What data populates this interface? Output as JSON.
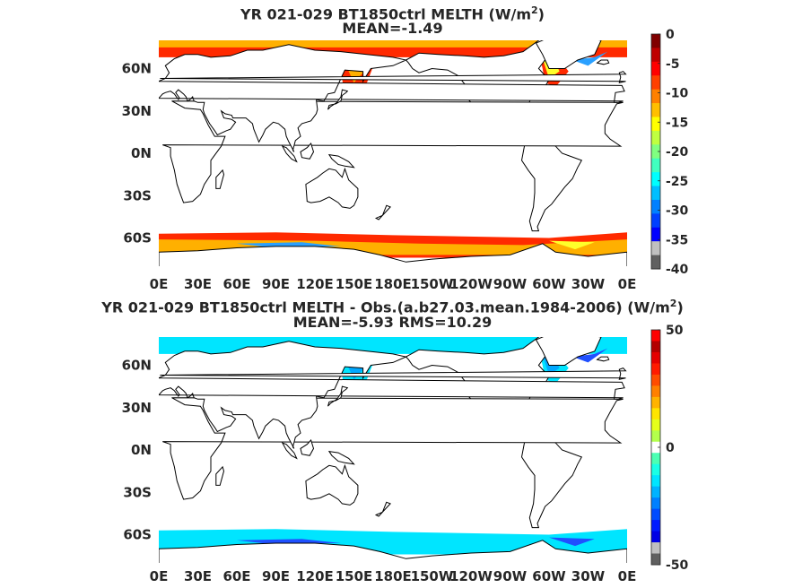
{
  "chart_data": [
    {
      "type": "heatmap",
      "title_prefix": "YR 021-029 BT1850ctrl  MELTH (W/m",
      "title_sup": "2",
      "title_suffix": ")",
      "subtitle": "MEAN=-1.49",
      "xticks": [
        "0E",
        "30E",
        "60E",
        "90E",
        "120E",
        "150E",
        "180E",
        "150W",
        "120W",
        "90W",
        "60W",
        "30W",
        "0E"
      ],
      "yticks": [
        "60N",
        "30N",
        "0N",
        "30S",
        "60S"
      ],
      "colorbar": {
        "min": -40,
        "max": 0,
        "ticks": [
          "0",
          "-5",
          "-10",
          "-15",
          "-20",
          "-25",
          "-30",
          "-35",
          "-40"
        ]
      },
      "xlim": [
        0,
        360
      ],
      "ylim": [
        -80,
        80
      ],
      "colors": {
        "ice_edge": "#ff2a00",
        "ice_mid": "#ffb000",
        "ice_inner": "#ffff2a",
        "ice_deep": "#2aa0ff"
      }
    },
    {
      "type": "heatmap",
      "title_prefix": "YR 021-029 BT1850ctrl MELTH - Obs.(a.b27.03.mean.1984-2006) (W/m",
      "title_sup": "2",
      "title_suffix": ")",
      "subtitle": "MEAN=-5.93 RMS=10.29",
      "xticks": [
        "0E",
        "30E",
        "60E",
        "90E",
        "120E",
        "150E",
        "180E",
        "150W",
        "120W",
        "90W",
        "60W",
        "30W",
        "0E"
      ],
      "yticks": [
        "60N",
        "30N",
        "0N",
        "30S",
        "60S"
      ],
      "colorbar": {
        "min": -50,
        "max": 50,
        "ticks": [
          "50",
          "0",
          "-50"
        ]
      },
      "xlim": [
        0,
        360
      ],
      "ylim": [
        -80,
        80
      ],
      "colors": {
        "diff_main": "#00e5ff",
        "diff_mid": "#00a8ff",
        "diff_deep": "#2050ff"
      }
    }
  ]
}
